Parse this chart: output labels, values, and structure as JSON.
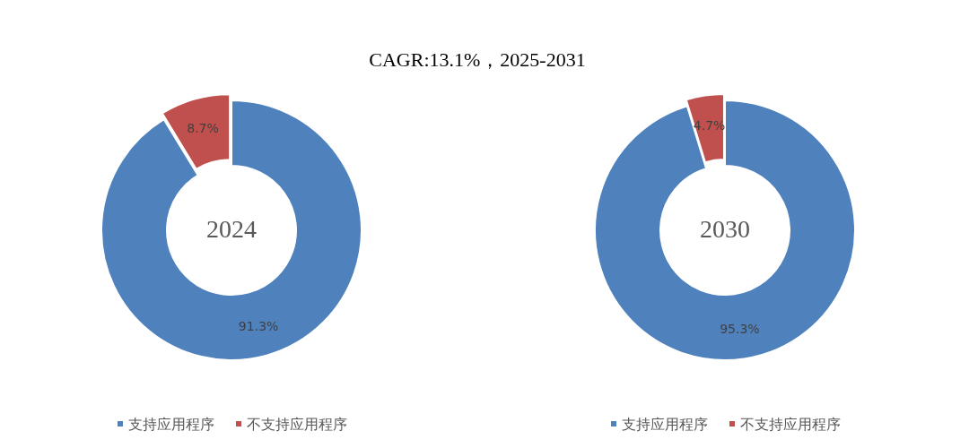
{
  "chart_data": [
    {
      "type": "donut",
      "title": "CAGR:13.1%，2025-2031",
      "subtitle": "2024",
      "categories": [
        "支持应用程序",
        "不支持应用程序"
      ],
      "values": [
        91.3,
        8.7
      ],
      "value_labels": [
        "91.3%",
        "8.7%"
      ],
      "colors": [
        "#4f81bd",
        "#c0504d"
      ],
      "legend": "bottom"
    },
    {
      "type": "donut",
      "subtitle": "2030",
      "categories": [
        "支持应用程序",
        "不支持应用程序"
      ],
      "values": [
        95.3,
        4.7
      ],
      "value_labels": [
        "95.3%",
        "4.7%"
      ],
      "colors": [
        "#4f81bd",
        "#c0504d"
      ],
      "legend": "bottom"
    }
  ]
}
